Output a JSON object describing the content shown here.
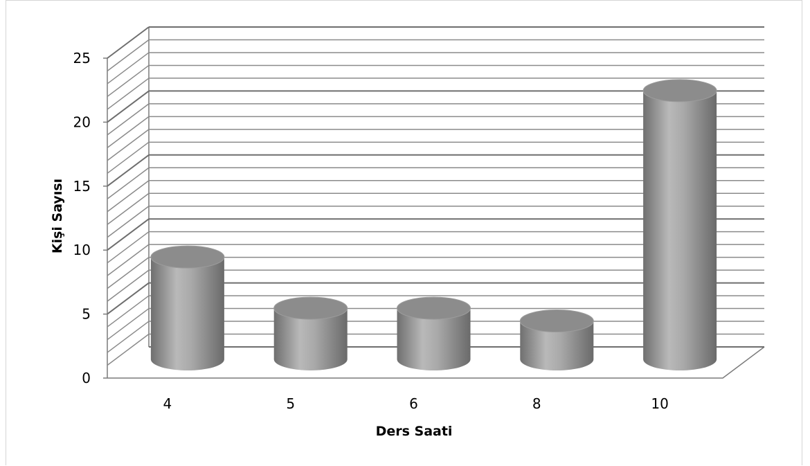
{
  "chart_data": {
    "type": "bar",
    "style": "3d-cylinder",
    "categories": [
      "4",
      "5",
      "6",
      "8",
      "10"
    ],
    "values": [
      8,
      4,
      4,
      3,
      21
    ],
    "xlabel": "Ders Saati",
    "ylabel": "Kişi Sayısı",
    "ylim": [
      0,
      25
    ],
    "yticks": [
      "0",
      "5",
      "10",
      "15",
      "20",
      "25"
    ],
    "minor_gridline_step": 1,
    "grid": true,
    "legend": "none",
    "bar_color": "#9a9a9a"
  }
}
